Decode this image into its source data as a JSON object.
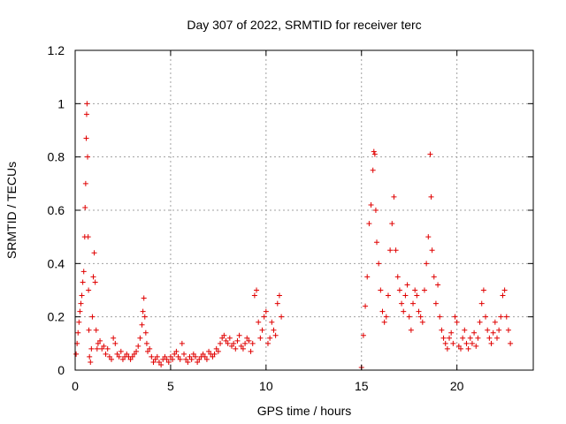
{
  "chart_data": {
    "type": "scatter",
    "title": "Day 307 of 2022, SRMTID for receiver terc",
    "xlabel": "GPS time / hours",
    "ylabel": "SRMTID / TECUs",
    "xlim": [
      0,
      24
    ],
    "ylim": [
      0,
      1.2
    ],
    "xticks": [
      0,
      5,
      10,
      15,
      20
    ],
    "xtick_labels": [
      "0",
      "5",
      "10",
      "15",
      "20"
    ],
    "yticks": [
      0,
      0.2,
      0.4,
      0.6,
      0.8,
      1,
      1.2
    ],
    "ytick_labels": [
      "0",
      "0.2",
      "0.4",
      "0.6",
      "0.8",
      "1",
      "1.2"
    ],
    "grid": true,
    "marker": "+",
    "colors": {
      "series": "#e00000",
      "grid": "#a0a0a0",
      "axis": "#000000"
    },
    "series": [
      {
        "name": "SRMTID",
        "x": [
          0.05,
          0.1,
          0.15,
          0.2,
          0.25,
          0.3,
          0.35,
          0.4,
          0.45,
          0.5,
          0.52,
          0.55,
          0.58,
          0.6,
          0.62,
          0.65,
          0.68,
          0.7,
          0.72,
          0.75,
          0.8,
          0.85,
          0.9,
          0.95,
          1.0,
          1.05,
          1.1,
          1.15,
          1.2,
          1.3,
          1.4,
          1.5,
          1.6,
          1.7,
          1.8,
          1.9,
          2.0,
          2.1,
          2.2,
          2.3,
          2.4,
          2.5,
          2.6,
          2.7,
          2.8,
          2.9,
          3.0,
          3.1,
          3.2,
          3.3,
          3.4,
          3.5,
          3.55,
          3.6,
          3.65,
          3.7,
          3.75,
          3.8,
          3.9,
          4.0,
          4.1,
          4.2,
          4.3,
          4.4,
          4.5,
          4.6,
          4.7,
          4.8,
          4.9,
          5.0,
          5.1,
          5.2,
          5.3,
          5.4,
          5.5,
          5.6,
          5.7,
          5.8,
          5.9,
          6.0,
          6.1,
          6.2,
          6.3,
          6.4,
          6.5,
          6.6,
          6.7,
          6.8,
          6.9,
          7.0,
          7.1,
          7.2,
          7.3,
          7.4,
          7.5,
          7.6,
          7.7,
          7.8,
          7.9,
          8.0,
          8.1,
          8.2,
          8.3,
          8.4,
          8.5,
          8.6,
          8.7,
          8.8,
          8.9,
          9.0,
          9.1,
          9.2,
          9.3,
          9.4,
          9.5,
          9.6,
          9.7,
          9.8,
          9.9,
          10.0,
          10.1,
          10.2,
          10.3,
          10.4,
          10.5,
          10.6,
          10.7,
          10.8,
          15.0,
          15.1,
          15.2,
          15.3,
          15.4,
          15.5,
          15.6,
          15.65,
          15.7,
          15.75,
          15.8,
          15.9,
          16.0,
          16.1,
          16.2,
          16.3,
          16.4,
          16.5,
          16.6,
          16.7,
          16.8,
          16.9,
          17.0,
          17.1,
          17.2,
          17.3,
          17.4,
          17.5,
          17.6,
          17.7,
          17.8,
          17.9,
          18.0,
          18.1,
          18.2,
          18.3,
          18.4,
          18.5,
          18.6,
          18.65,
          18.7,
          18.8,
          18.9,
          19.0,
          19.1,
          19.2,
          19.3,
          19.4,
          19.5,
          19.6,
          19.7,
          19.8,
          19.9,
          20.0,
          20.1,
          20.2,
          20.3,
          20.4,
          20.5,
          20.6,
          20.7,
          20.8,
          20.9,
          21.0,
          21.1,
          21.2,
          21.3,
          21.4,
          21.5,
          21.6,
          21.7,
          21.8,
          21.9,
          22.0,
          22.1,
          22.2,
          22.3,
          22.4,
          22.5,
          22.6,
          22.7,
          22.8
        ],
        "y": [
          0.06,
          0.1,
          0.14,
          0.18,
          0.22,
          0.25,
          0.28,
          0.33,
          0.37,
          0.5,
          0.61,
          0.7,
          0.87,
          0.96,
          1.0,
          0.8,
          0.5,
          0.3,
          0.15,
          0.05,
          0.03,
          0.08,
          0.2,
          0.35,
          0.44,
          0.33,
          0.15,
          0.08,
          0.1,
          0.11,
          0.08,
          0.09,
          0.06,
          0.08,
          0.05,
          0.04,
          0.12,
          0.1,
          0.06,
          0.05,
          0.07,
          0.04,
          0.05,
          0.06,
          0.05,
          0.04,
          0.05,
          0.06,
          0.07,
          0.09,
          0.12,
          0.17,
          0.22,
          0.27,
          0.2,
          0.14,
          0.1,
          0.07,
          0.08,
          0.05,
          0.03,
          0.04,
          0.05,
          0.03,
          0.02,
          0.04,
          0.05,
          0.04,
          0.03,
          0.05,
          0.04,
          0.06,
          0.07,
          0.05,
          0.04,
          0.1,
          0.06,
          0.04,
          0.03,
          0.05,
          0.04,
          0.06,
          0.05,
          0.03,
          0.04,
          0.05,
          0.06,
          0.05,
          0.04,
          0.07,
          0.06,
          0.05,
          0.06,
          0.08,
          0.07,
          0.1,
          0.12,
          0.13,
          0.11,
          0.1,
          0.12,
          0.09,
          0.1,
          0.08,
          0.11,
          0.13,
          0.09,
          0.08,
          0.1,
          0.12,
          0.11,
          0.07,
          0.1,
          0.28,
          0.3,
          0.18,
          0.12,
          0.15,
          0.2,
          0.22,
          0.1,
          0.12,
          0.18,
          0.15,
          0.13,
          0.25,
          0.28,
          0.2,
          0.01,
          0.13,
          0.24,
          0.35,
          0.55,
          0.62,
          0.75,
          0.82,
          0.81,
          0.6,
          0.48,
          0.4,
          0.3,
          0.22,
          0.18,
          0.2,
          0.28,
          0.45,
          0.55,
          0.65,
          0.45,
          0.35,
          0.3,
          0.25,
          0.22,
          0.28,
          0.32,
          0.2,
          0.15,
          0.25,
          0.3,
          0.28,
          0.22,
          0.2,
          0.18,
          0.3,
          0.4,
          0.5,
          0.81,
          0.65,
          0.45,
          0.35,
          0.25,
          0.32,
          0.2,
          0.15,
          0.12,
          0.1,
          0.08,
          0.12,
          0.14,
          0.1,
          0.2,
          0.18,
          0.09,
          0.08,
          0.12,
          0.15,
          0.1,
          0.08,
          0.12,
          0.1,
          0.14,
          0.09,
          0.12,
          0.18,
          0.25,
          0.3,
          0.2,
          0.15,
          0.12,
          0.1,
          0.14,
          0.18,
          0.12,
          0.15,
          0.2,
          0.28,
          0.3,
          0.2,
          0.15,
          0.1
        ]
      }
    ]
  }
}
